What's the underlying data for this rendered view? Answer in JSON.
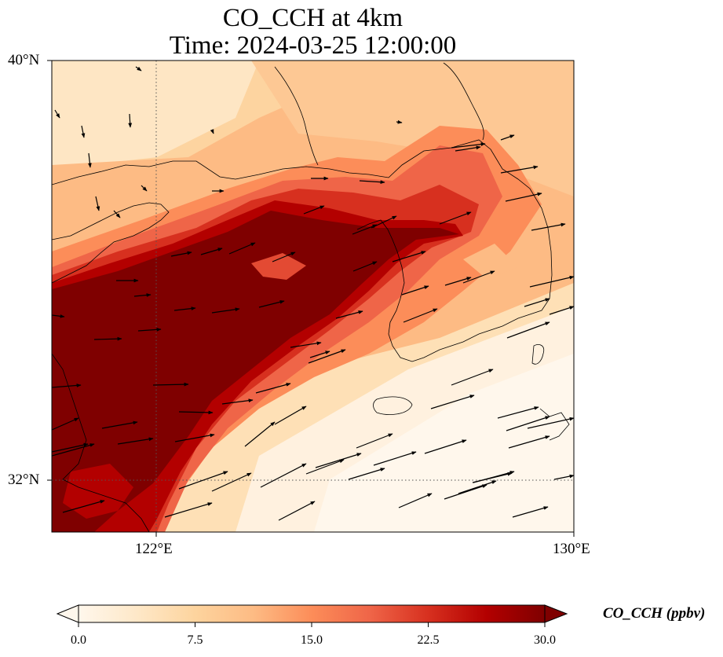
{
  "title": {
    "line1": "CO_CCH at 4km",
    "line2": "Time: 2024-03-25 12:00:00"
  },
  "map": {
    "extent": {
      "lon_min": 119.5,
      "lon_max": 130.0,
      "lat_min": 31.0,
      "lat_max": 40.0
    },
    "lat_ticks": [
      {
        "value": 40,
        "label": "40°N"
      },
      {
        "value": 32,
        "label": "32°N"
      }
    ],
    "lon_ticks": [
      {
        "value": 122,
        "label": "122°E"
      },
      {
        "value": 130,
        "label": "130°E"
      }
    ],
    "gridlines": "dotted at 122°E and 32°N",
    "field": "CO_CCH",
    "colormap": "OrRd",
    "wind_vectors": "black arrows, predominantly westerly to west-south-westerly",
    "plume": "high CO (>=30 ppbv) plume over eastern China extending north-east across the Yellow Sea toward the Korean Peninsula"
  },
  "colorbar": {
    "label": "CO_CCH (ppbv)",
    "min": 0.0,
    "max": 30.0,
    "ticks": [
      "0.0",
      "7.5",
      "15.0",
      "22.5",
      "30.0"
    ],
    "extend": "both",
    "colors": [
      "#fff7ec",
      "#fee8c8",
      "#fdd49e",
      "#fdbb84",
      "#fc8d59",
      "#ef6548",
      "#d7301f",
      "#b30000",
      "#7f0000"
    ]
  }
}
